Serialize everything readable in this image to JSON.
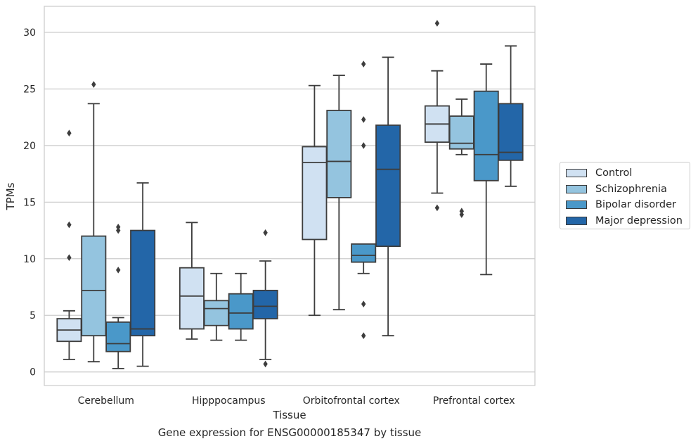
{
  "caption": "Gene expression for ENSG00000185347 by tissue",
  "chart_data": {
    "type": "box",
    "xlabel": "Tissue",
    "ylabel": "TPMs",
    "ylim": [
      -1.2,
      32.3
    ],
    "yticks": [
      0,
      5,
      10,
      15,
      20,
      25,
      30
    ],
    "categories": [
      "Cerebellum",
      "Hipppocampus",
      "Orbitofrontal cortex",
      "Prefrontal cortex"
    ],
    "grid": "horizontal",
    "legend_position": "right (outside plot)",
    "series": [
      {
        "name": "Control",
        "color": "#d0e1f2",
        "boxes": [
          {
            "whislo": 1.1,
            "q1": 2.7,
            "med": 3.7,
            "q3": 4.7,
            "whishi": 5.4,
            "fliers": [
              21.1,
              13.0,
              10.1
            ]
          },
          {
            "whislo": 2.9,
            "q1": 3.8,
            "med": 6.7,
            "q3": 9.2,
            "whishi": 13.2,
            "fliers": []
          },
          {
            "whislo": 5.0,
            "q1": 11.7,
            "med": 18.5,
            "q3": 19.9,
            "whishi": 25.3,
            "fliers": []
          },
          {
            "whislo": 15.8,
            "q1": 20.3,
            "med": 21.9,
            "q3": 23.5,
            "whishi": 26.6,
            "fliers": [
              30.8,
              14.5
            ]
          }
        ]
      },
      {
        "name": "Schizophrenia",
        "color": "#94c4df",
        "boxes": [
          {
            "whislo": 0.9,
            "q1": 3.2,
            "med": 7.2,
            "q3": 12.0,
            "whishi": 23.7,
            "fliers": [
              25.4
            ]
          },
          {
            "whislo": 2.8,
            "q1": 4.1,
            "med": 5.6,
            "q3": 6.3,
            "whishi": 8.7,
            "fliers": []
          },
          {
            "whislo": 5.5,
            "q1": 15.4,
            "med": 18.6,
            "q3": 23.1,
            "whishi": 26.2,
            "fliers": []
          },
          {
            "whislo": 19.2,
            "q1": 19.7,
            "med": 20.2,
            "q3": 22.6,
            "whishi": 24.1,
            "fliers": [
              14.2,
              13.9
            ]
          }
        ]
      },
      {
        "name": "Bipolar disorder",
        "color": "#4a98c9",
        "boxes": [
          {
            "whislo": 0.3,
            "q1": 1.8,
            "med": 2.5,
            "q3": 4.4,
            "whishi": 4.8,
            "fliers": [
              12.8,
              12.5,
              9.0
            ]
          },
          {
            "whislo": 2.8,
            "q1": 3.8,
            "med": 5.2,
            "q3": 6.9,
            "whishi": 8.7,
            "fliers": []
          },
          {
            "whislo": 8.7,
            "q1": 9.7,
            "med": 10.3,
            "q3": 11.3,
            "whishi": 11.3,
            "fliers": [
              27.2,
              22.3,
              20.0,
              6.0,
              3.2
            ]
          },
          {
            "whislo": 8.6,
            "q1": 16.9,
            "med": 19.2,
            "q3": 24.8,
            "whishi": 27.2,
            "fliers": []
          }
        ]
      },
      {
        "name": "Major depression",
        "color": "#2366a8",
        "boxes": [
          {
            "whislo": 0.5,
            "q1": 3.2,
            "med": 3.8,
            "q3": 12.5,
            "whishi": 16.7,
            "fliers": []
          },
          {
            "whislo": 1.1,
            "q1": 4.7,
            "med": 5.8,
            "q3": 7.2,
            "whishi": 9.8,
            "fliers": [
              12.3,
              0.7
            ]
          },
          {
            "whislo": 3.2,
            "q1": 11.1,
            "med": 17.9,
            "q3": 21.8,
            "whishi": 27.8,
            "fliers": []
          },
          {
            "whislo": 16.4,
            "q1": 18.7,
            "med": 19.4,
            "q3": 23.7,
            "whishi": 28.8,
            "fliers": []
          }
        ]
      }
    ]
  }
}
